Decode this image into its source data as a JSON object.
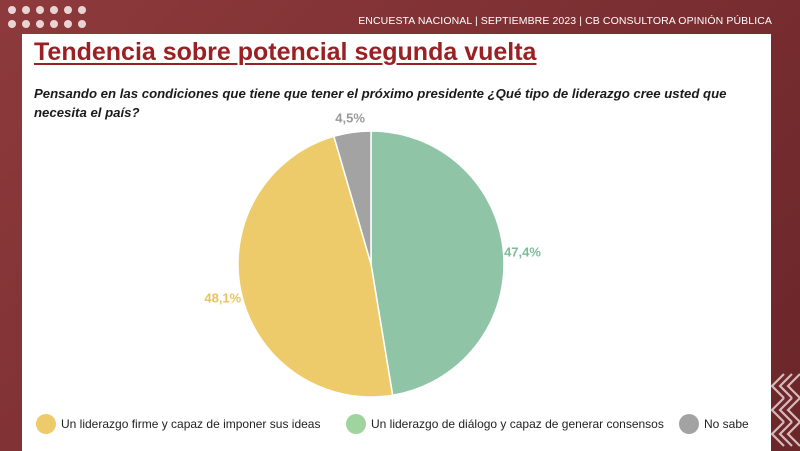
{
  "header": {
    "survey_line": "ENCUESTA NACIONAL | SEPTIEMBRE  2023 | CB CONSULTORA OPINIÓN PÚBLICA"
  },
  "slide": {
    "title": "Tendencia sobre potencial segunda vuelta",
    "question": "Pensando en las condiciones que tiene que tener el próximo presidente ¿Qué tipo de liderazgo cree usted que necesita el país?"
  },
  "chart_data": {
    "type": "pie",
    "title": "Tendencia sobre potencial segunda vuelta",
    "slices": [
      {
        "label": "Un liderazgo de diálogo y capaz de generar consensos",
        "value": 47.4,
        "display": "47,4%",
        "color": "#8fc4a7",
        "label_color": "#7dbb9c"
      },
      {
        "label": "Un liderazgo firme y capaz de imponer sus ideas",
        "value": 48.1,
        "display": "48,1%",
        "color": "#eecb6a",
        "label_color": "#e8c35a"
      },
      {
        "label": "No sabe",
        "value": 4.5,
        "display": "4,5%",
        "color": "#a3a3a3",
        "label_color": "#9a9a9a"
      }
    ],
    "legend_order": [
      {
        "label": "Un liderazgo firme y capaz de imponer sus ideas",
        "color": "#eecb6a"
      },
      {
        "label": "Un liderazgo de diálogo y capaz de generar consensos",
        "color": "#9fd49f"
      },
      {
        "label": "No sabe",
        "color": "#a3a3a3"
      }
    ],
    "legend_placement": "bottom"
  },
  "colors": {
    "background": "#8e3a3c",
    "title": "#9b2023"
  }
}
